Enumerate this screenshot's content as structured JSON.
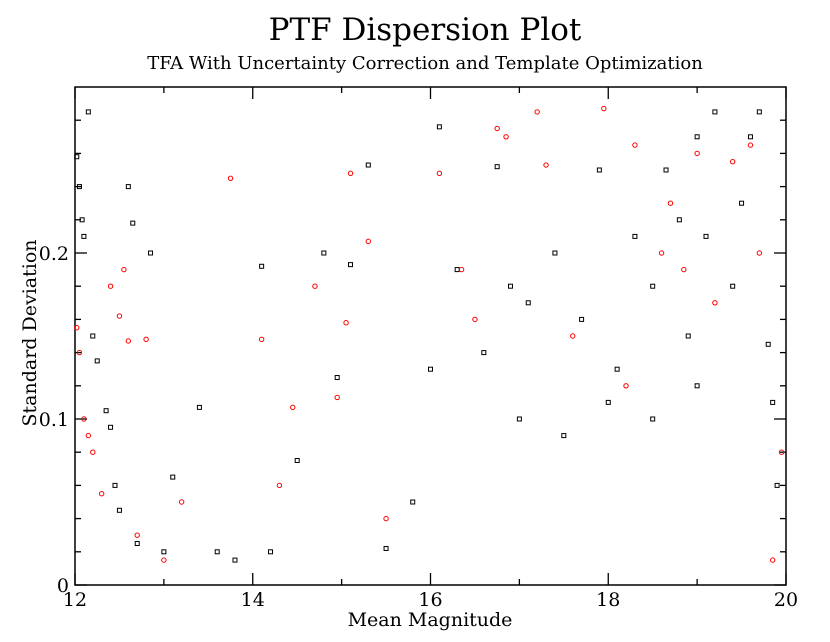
{
  "chart_data": {
    "type": "scatter",
    "title": "PTF Dispersion Plot",
    "subtitle": "TFA With Uncertainty Correction and Template Optimization",
    "xlabel": "Mean Magnitude",
    "ylabel": "Standard Deviation",
    "xlim": [
      12,
      20
    ],
    "ylim": [
      0,
      0.3
    ],
    "x_ticks": [
      12,
      14,
      16,
      18,
      20
    ],
    "x_tick_labels": [
      "12",
      "14",
      "16",
      "18",
      "20"
    ],
    "y_ticks": [
      0,
      0.1,
      0.2
    ],
    "y_tick_labels": [
      "0",
      "0.1",
      "0.2"
    ],
    "grid": false,
    "legend": "none",
    "series": [
      {
        "name": "black squares",
        "marker": "square",
        "color": "#000000",
        "points": [
          [
            12.02,
            0.258
          ],
          [
            12.05,
            0.24
          ],
          [
            12.08,
            0.22
          ],
          [
            12.1,
            0.21
          ],
          [
            12.15,
            0.285
          ],
          [
            12.2,
            0.15
          ],
          [
            12.25,
            0.135
          ],
          [
            12.35,
            0.105
          ],
          [
            12.4,
            0.095
          ],
          [
            12.45,
            0.06
          ],
          [
            12.5,
            0.045
          ],
          [
            12.6,
            0.24
          ],
          [
            12.65,
            0.218
          ],
          [
            12.7,
            0.025
          ],
          [
            12.85,
            0.2
          ],
          [
            13.0,
            0.02
          ],
          [
            13.1,
            0.065
          ],
          [
            13.4,
            0.107
          ],
          [
            13.6,
            0.02
          ],
          [
            13.8,
            0.015
          ],
          [
            14.1,
            0.192
          ],
          [
            14.2,
            0.02
          ],
          [
            14.5,
            0.075
          ],
          [
            14.8,
            0.2
          ],
          [
            14.95,
            0.125
          ],
          [
            15.1,
            0.193
          ],
          [
            15.3,
            0.253
          ],
          [
            15.5,
            0.022
          ],
          [
            15.8,
            0.05
          ],
          [
            16.0,
            0.13
          ],
          [
            16.1,
            0.276
          ],
          [
            16.3,
            0.19
          ],
          [
            16.6,
            0.14
          ],
          [
            16.75,
            0.252
          ],
          [
            16.9,
            0.18
          ],
          [
            17.1,
            0.17
          ],
          [
            17.4,
            0.2
          ],
          [
            17.7,
            0.16
          ],
          [
            17.9,
            0.25
          ],
          [
            18.1,
            0.13
          ],
          [
            18.3,
            0.21
          ],
          [
            18.5,
            0.18
          ],
          [
            18.65,
            0.25
          ],
          [
            18.8,
            0.22
          ],
          [
            18.9,
            0.15
          ],
          [
            19.0,
            0.27
          ],
          [
            19.1,
            0.21
          ],
          [
            19.2,
            0.285
          ],
          [
            19.4,
            0.18
          ],
          [
            19.5,
            0.23
          ],
          [
            19.6,
            0.27
          ],
          [
            19.7,
            0.285
          ],
          [
            19.8,
            0.145
          ],
          [
            19.85,
            0.11
          ],
          [
            19.9,
            0.06
          ],
          [
            17.0,
            0.1
          ],
          [
            17.5,
            0.09
          ],
          [
            18.0,
            0.11
          ],
          [
            18.5,
            0.1
          ],
          [
            19.0,
            0.12
          ]
        ]
      },
      {
        "name": "red circles",
        "marker": "circle",
        "color": "#ff0000",
        "points": [
          [
            12.02,
            0.155
          ],
          [
            12.05,
            0.14
          ],
          [
            12.1,
            0.1
          ],
          [
            12.15,
            0.09
          ],
          [
            12.2,
            0.08
          ],
          [
            12.3,
            0.055
          ],
          [
            12.4,
            0.18
          ],
          [
            12.5,
            0.162
          ],
          [
            12.55,
            0.19
          ],
          [
            12.6,
            0.147
          ],
          [
            12.7,
            0.03
          ],
          [
            12.8,
            0.148
          ],
          [
            13.0,
            0.015
          ],
          [
            13.2,
            0.05
          ],
          [
            13.75,
            0.245
          ],
          [
            14.1,
            0.148
          ],
          [
            14.3,
            0.06
          ],
          [
            14.45,
            0.107
          ],
          [
            14.7,
            0.18
          ],
          [
            14.95,
            0.113
          ],
          [
            15.05,
            0.158
          ],
          [
            15.1,
            0.248
          ],
          [
            15.3,
            0.207
          ],
          [
            15.5,
            0.04
          ],
          [
            16.1,
            0.248
          ],
          [
            16.35,
            0.19
          ],
          [
            16.5,
            0.16
          ],
          [
            16.75,
            0.275
          ],
          [
            16.85,
            0.27
          ],
          [
            17.2,
            0.285
          ],
          [
            17.3,
            0.253
          ],
          [
            17.6,
            0.15
          ],
          [
            17.95,
            0.287
          ],
          [
            18.2,
            0.12
          ],
          [
            18.3,
            0.265
          ],
          [
            18.6,
            0.2
          ],
          [
            18.7,
            0.23
          ],
          [
            18.85,
            0.19
          ],
          [
            19.0,
            0.26
          ],
          [
            19.2,
            0.17
          ],
          [
            19.4,
            0.255
          ],
          [
            19.6,
            0.265
          ],
          [
            19.7,
            0.2
          ],
          [
            19.85,
            0.015
          ],
          [
            19.95,
            0.08
          ]
        ]
      }
    ]
  }
}
